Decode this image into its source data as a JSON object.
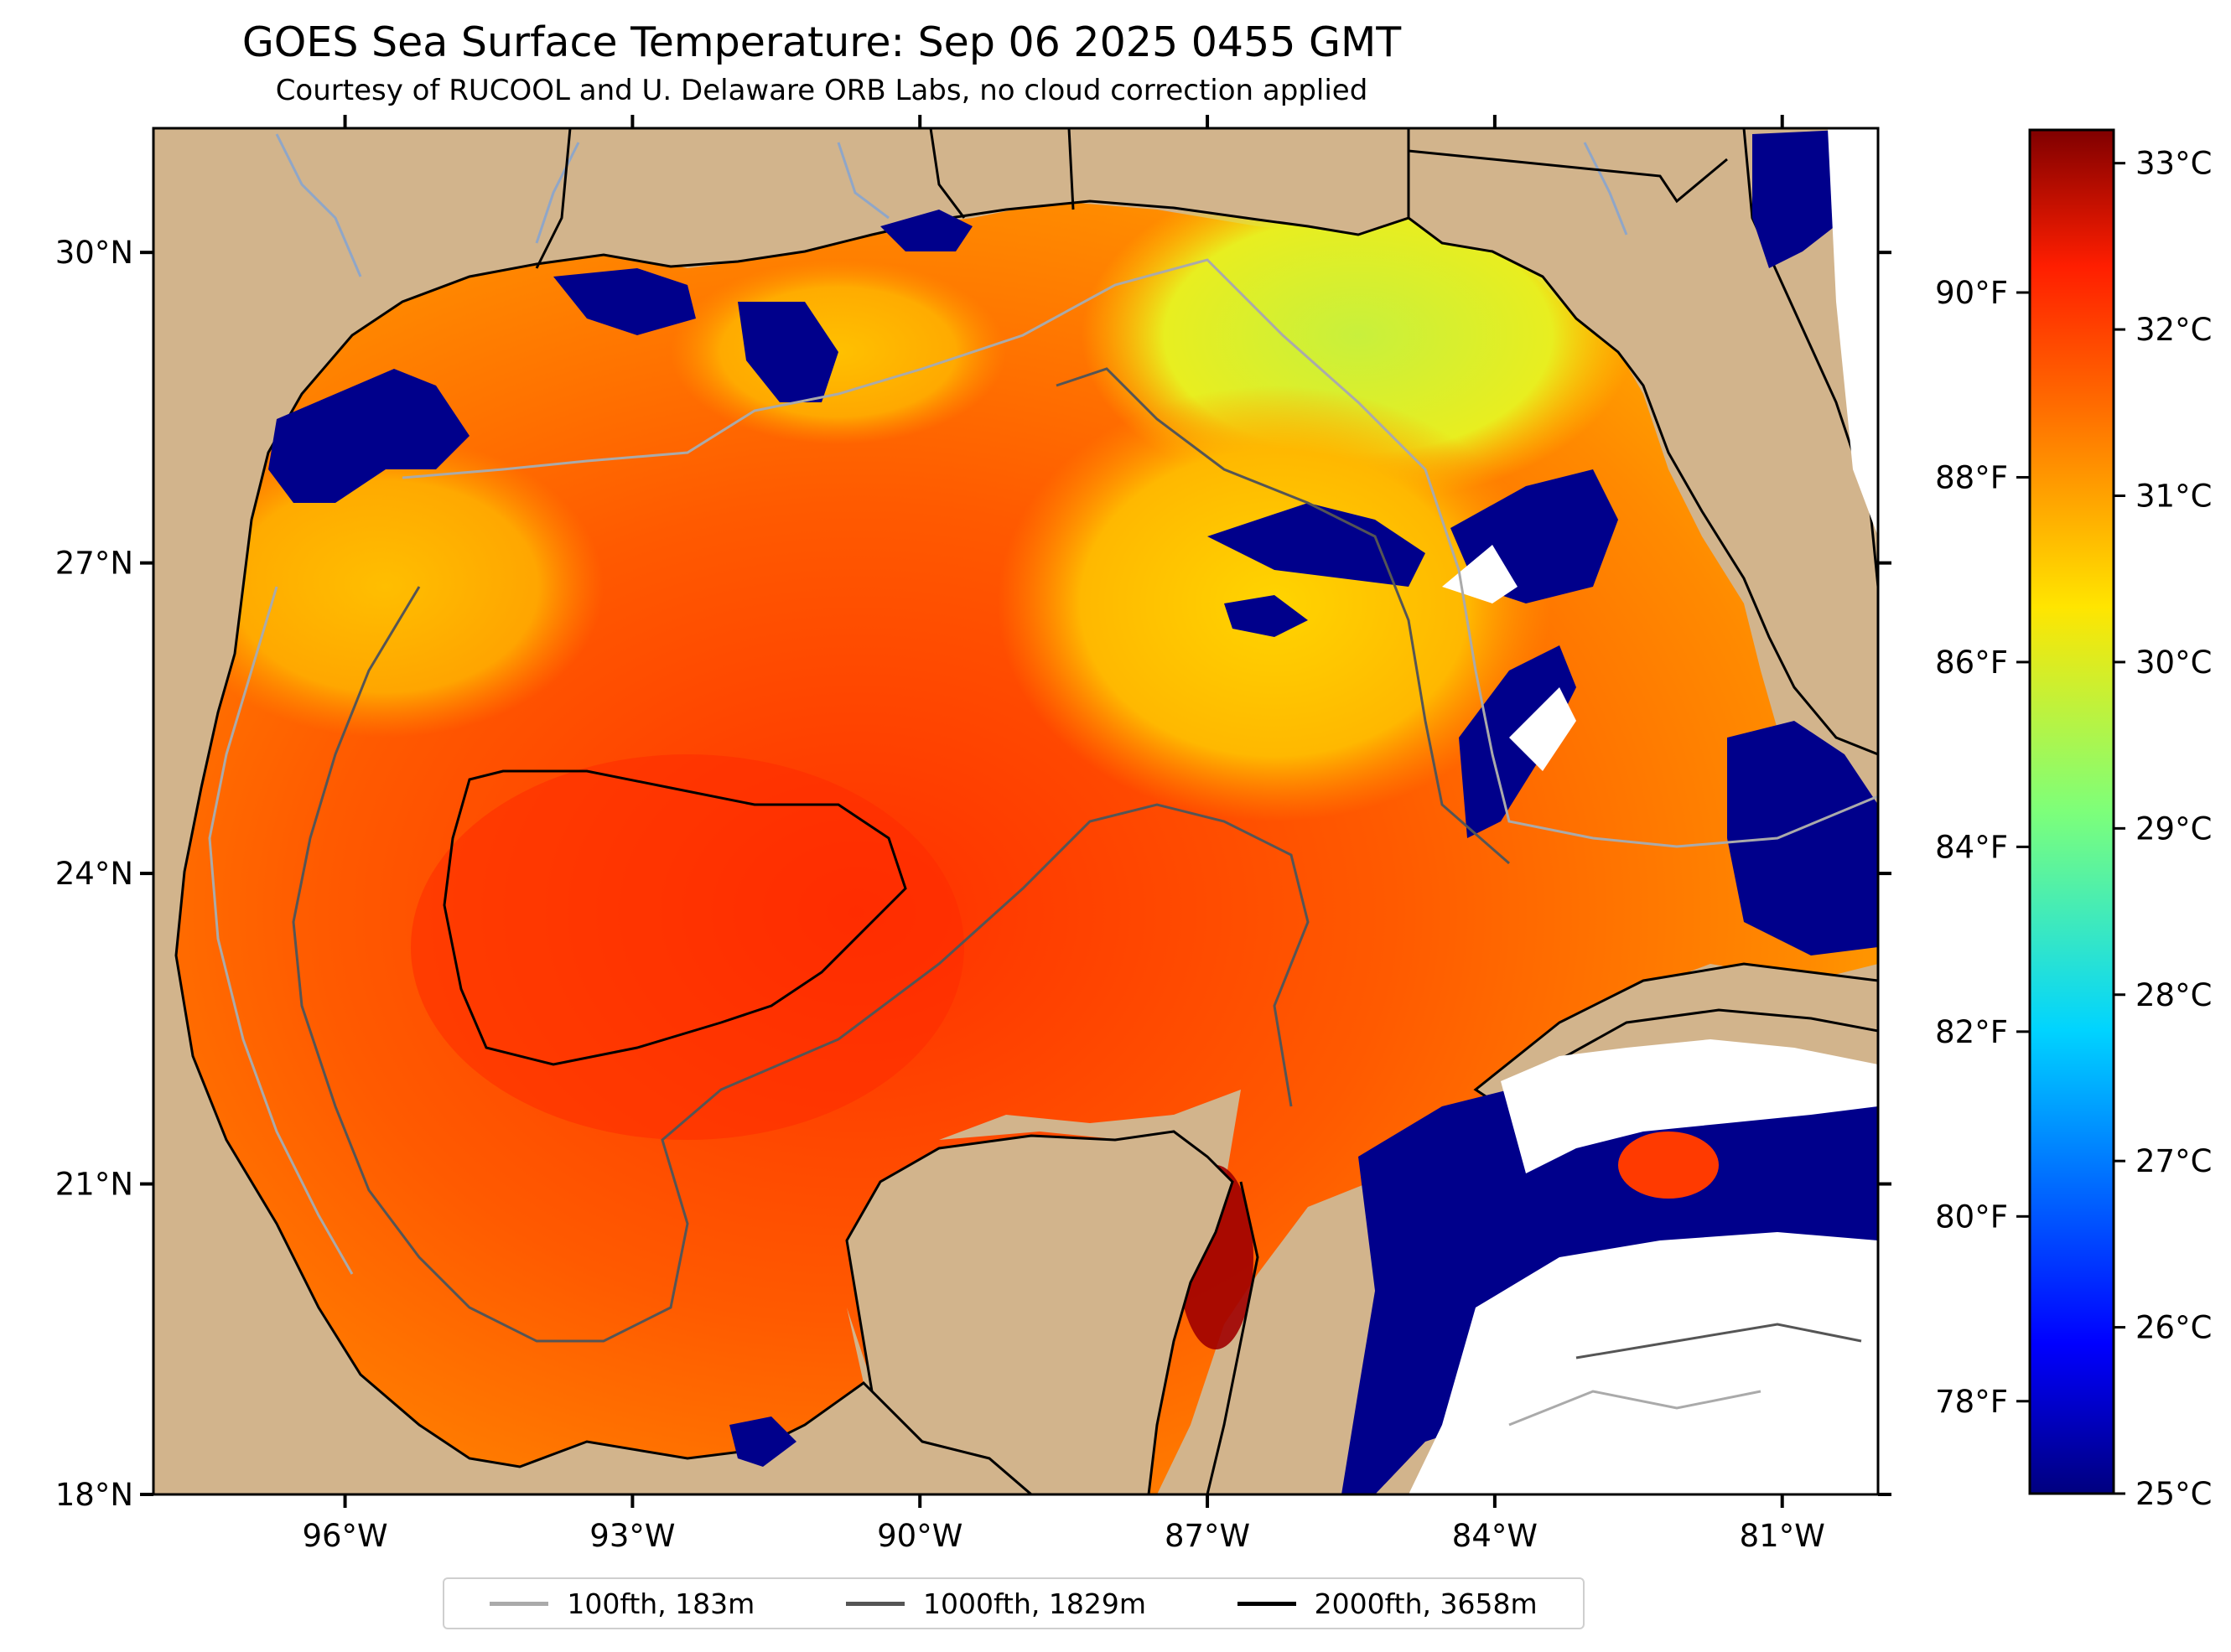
{
  "title": "GOES Sea Surface Temperature: Sep 06 2025 0455 GMT",
  "subtitle": "Courtesy of RUCOOL and U. Delaware ORB Labs, no cloud correction applied",
  "map": {
    "lon_range": [
      -98.0,
      -80.0
    ],
    "lat_range": [
      18.0,
      31.2
    ],
    "lat_ticks": [
      {
        "value": 30,
        "label": "30°N"
      },
      {
        "value": 27,
        "label": "27°N"
      },
      {
        "value": 24,
        "label": "24°N"
      },
      {
        "value": 21,
        "label": "21°N"
      },
      {
        "value": 18,
        "label": "18°N"
      }
    ],
    "lon_ticks": [
      {
        "value": -96,
        "label": "96°W"
      },
      {
        "value": -93,
        "label": "93°W"
      },
      {
        "value": -90,
        "label": "90°W"
      },
      {
        "value": -87,
        "label": "87°W"
      },
      {
        "value": -84,
        "label": "84°W"
      },
      {
        "value": -81,
        "label": "81°W"
      }
    ],
    "fahrenheit_ticks": [
      {
        "value": 90,
        "label": "90°F"
      },
      {
        "value": 88,
        "label": "88°F"
      },
      {
        "value": 86,
        "label": "86°F"
      },
      {
        "value": 84,
        "label": "84°F"
      },
      {
        "value": 82,
        "label": "82°F"
      },
      {
        "value": 80,
        "label": "80°F"
      },
      {
        "value": 78,
        "label": "78°F"
      }
    ],
    "colors": {
      "land": "#d2b48c",
      "cloud_cold": "#00008b",
      "warm": "#ff6a00",
      "hot": "#ff2a00",
      "cool": "#b7f04a",
      "no_data": "#ffffff",
      "coast": "#000000"
    }
  },
  "colorbar": {
    "range_c": [
      25,
      33.2
    ],
    "ticks": [
      {
        "value": 33,
        "label": "33°C"
      },
      {
        "value": 32,
        "label": "32°C"
      },
      {
        "value": 31,
        "label": "31°C"
      },
      {
        "value": 30,
        "label": "30°C"
      },
      {
        "value": 29,
        "label": "29°C"
      },
      {
        "value": 28,
        "label": "28°C"
      },
      {
        "value": 27,
        "label": "27°C"
      },
      {
        "value": 26,
        "label": "26°C"
      },
      {
        "value": 25,
        "label": "25°C"
      }
    ],
    "colormap": "jet"
  },
  "legend": {
    "items": [
      {
        "label": "100fth, 183m",
        "color": "#aaaaaa"
      },
      {
        "label": "1000fth, 1829m",
        "color": "#555555"
      },
      {
        "label": "2000fth, 3658m",
        "color": "#000000"
      }
    ]
  }
}
